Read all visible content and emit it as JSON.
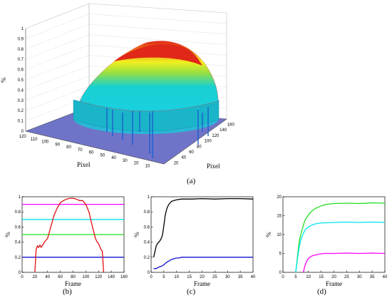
{
  "figure": {
    "captions": [
      "(a)",
      "(b)",
      "(c)",
      "(d)"
    ]
  },
  "chart_data": [
    {
      "id": "a",
      "type": "surface3d",
      "xlabel": "Pixel",
      "ylabel": "Pixel",
      "zlabel": "%",
      "x_ticks": [
        "10",
        "20",
        "30",
        "40",
        "50",
        "60",
        "70",
        "80",
        "90",
        "100",
        "110",
        "120"
      ],
      "y_ticks": [
        "20",
        "40",
        "60",
        "80",
        "100",
        "120",
        "140",
        "160"
      ],
      "z_ticks": [
        "0",
        "0.1",
        "0.2",
        "0.3",
        "0.4",
        "0.5",
        "0.6",
        "0.7",
        "0.8",
        "0.9",
        "1"
      ],
      "xlim": [
        0,
        120
      ],
      "ylim": [
        0,
        160
      ],
      "zlim": [
        0,
        1
      ],
      "peak_value": 0.9,
      "colors": {
        "base": "#6f74c8",
        "low": "#19d0e0",
        "mid": "#f0f020",
        "high": "#e03018"
      }
    },
    {
      "id": "b",
      "type": "line",
      "xlabel": "Frame",
      "ylabel": "%",
      "xlim": [
        0,
        160
      ],
      "ylim": [
        0,
        1
      ],
      "x_ticks": [
        "0",
        "20",
        "40",
        "60",
        "80",
        "100",
        "120",
        "140",
        "160"
      ],
      "y_ticks": [
        "0",
        "0.2",
        "0.4",
        "0.6",
        "0.8",
        "1"
      ],
      "series": [
        {
          "color": "#ff00ff",
          "x": [
            0,
            160
          ],
          "y": [
            0.9,
            0.9
          ]
        },
        {
          "color": "#00e5ee",
          "x": [
            0,
            160
          ],
          "y": [
            0.7,
            0.7
          ]
        },
        {
          "color": "#22dd22",
          "x": [
            0,
            160
          ],
          "y": [
            0.5,
            0.5
          ]
        },
        {
          "color": "#1010d0",
          "x": [
            0,
            160
          ],
          "y": [
            0.2,
            0.2
          ]
        },
        {
          "color": "#e01010",
          "x": [
            20,
            22,
            24,
            26,
            28,
            30,
            35,
            40,
            45,
            50,
            55,
            60,
            65,
            70,
            75,
            80,
            85,
            90,
            95,
            100,
            105,
            110,
            115,
            118,
            120,
            122,
            124,
            126,
            128
          ],
          "y": [
            0,
            0.3,
            0.35,
            0.33,
            0.36,
            0.33,
            0.4,
            0.45,
            0.6,
            0.75,
            0.85,
            0.92,
            0.95,
            0.97,
            0.98,
            0.98,
            0.97,
            0.95,
            0.95,
            0.9,
            0.8,
            0.62,
            0.45,
            0.4,
            0.38,
            0.34,
            0.3,
            0.28,
            0
          ]
        }
      ]
    },
    {
      "id": "c",
      "type": "line",
      "xlabel": "Frame",
      "ylabel": "%",
      "xlim": [
        0,
        40
      ],
      "ylim": [
        0,
        1
      ],
      "x_ticks": [
        "0",
        "5",
        "10",
        "15",
        "20",
        "25",
        "30",
        "35",
        "40"
      ],
      "y_ticks": [
        "0",
        "0.2",
        "0.4",
        "0.6",
        "0.8",
        "1"
      ],
      "series": [
        {
          "color": "#000000",
          "x": [
            1,
            2,
            2.5,
            3,
            3.5,
            4,
            4.5,
            5,
            5.5,
            6,
            6.5,
            7,
            7.5,
            8,
            9,
            10,
            11,
            12,
            14,
            16,
            20,
            25,
            30,
            35,
            40
          ],
          "y": [
            0.2,
            0.35,
            0.38,
            0.4,
            0.42,
            0.45,
            0.5,
            0.62,
            0.75,
            0.82,
            0.87,
            0.9,
            0.92,
            0.94,
            0.95,
            0.96,
            0.965,
            0.97,
            0.97,
            0.97,
            0.975,
            0.97,
            0.975,
            0.975,
            0.97
          ]
        },
        {
          "color": "#1010d0",
          "x": [
            1,
            2,
            3,
            4,
            5,
            6,
            7,
            8,
            9,
            10,
            11,
            12,
            14,
            16,
            20,
            25,
            30,
            35,
            40
          ],
          "y": [
            0.05,
            0.05,
            0.07,
            0.08,
            0.1,
            0.13,
            0.15,
            0.17,
            0.18,
            0.19,
            0.19,
            0.2,
            0.2,
            0.2,
            0.2,
            0.2,
            0.2,
            0.2,
            0.2
          ]
        }
      ]
    },
    {
      "id": "d",
      "type": "line",
      "xlabel": "Frame",
      "ylabel": "%",
      "xlim": [
        0,
        40
      ],
      "ylim": [
        0,
        20
      ],
      "x_ticks": [
        "0",
        "5",
        "10",
        "15",
        "20",
        "25",
        "30",
        "35",
        "40"
      ],
      "y_ticks": [
        "0",
        "5",
        "10",
        "15",
        "20"
      ],
      "series": [
        {
          "color": "#22dd22",
          "x": [
            5,
            5.5,
            6,
            6.5,
            7,
            7.5,
            8,
            8.5,
            9,
            10,
            11,
            12,
            13,
            14,
            15,
            17,
            20,
            25,
            30,
            35,
            40
          ],
          "y": [
            0,
            3,
            6,
            8.5,
            10,
            11.2,
            12.5,
            13.5,
            14.2,
            15.2,
            16,
            16.6,
            17,
            17.3,
            17.6,
            18,
            18.2,
            18.3,
            18.2,
            18.4,
            18.3
          ]
        },
        {
          "color": "#00e5ee",
          "x": [
            5,
            5.5,
            6,
            6.5,
            7,
            7.5,
            8,
            8.5,
            9,
            10,
            11,
            12,
            14,
            16,
            20,
            25,
            30,
            35,
            40
          ],
          "y": [
            0,
            2.5,
            5,
            7,
            8.5,
            9.5,
            10.3,
            11,
            11.5,
            12,
            12.4,
            12.7,
            13,
            13.1,
            13.2,
            13.3,
            13.2,
            13.3,
            13.2
          ]
        },
        {
          "color": "#ff00ff",
          "x": [
            8,
            8.5,
            9,
            9.5,
            10,
            11,
            12,
            13,
            14,
            15,
            16,
            18,
            20,
            25,
            30,
            35,
            40
          ],
          "y": [
            0,
            1.5,
            2.5,
            3.2,
            3.7,
            4.2,
            4.5,
            4.6,
            4.8,
            4.9,
            5,
            5,
            5,
            5.1,
            5,
            5.1,
            5
          ]
        }
      ]
    }
  ]
}
